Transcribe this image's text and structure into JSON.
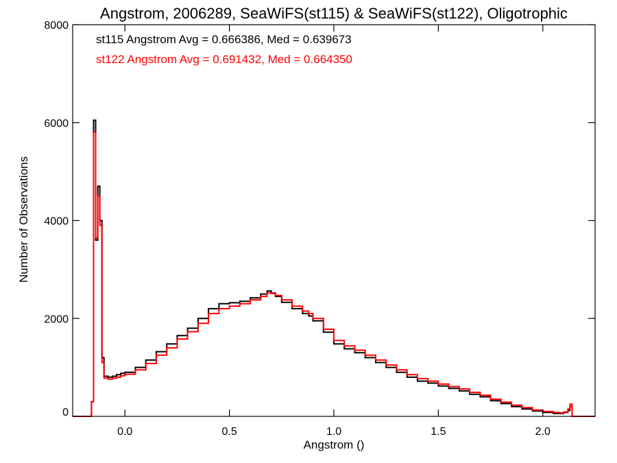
{
  "chart_data": {
    "type": "line",
    "title": "Angstrom, 2006289, SeaWiFS(st115) & SeaWiFS(st122), Oligotrophic",
    "xlabel": "Angstrom ()",
    "ylabel": "Number of Observations",
    "xlim": [
      -0.25,
      2.25
    ],
    "ylim": [
      0,
      8000
    ],
    "x_ticks": [
      0.0,
      0.5,
      1.0,
      1.5,
      2.0
    ],
    "x_tick_labels": [
      "0.0",
      "0.5",
      "1.0",
      "1.5",
      "2.0"
    ],
    "y_ticks": [
      0,
      2000,
      4000,
      6000,
      8000
    ],
    "y_tick_labels": [
      "0",
      "2000",
      "4000",
      "6000",
      "8000"
    ],
    "grid": false,
    "step": true,
    "annotations": [
      {
        "text": "st115 Angstrom Avg = 0.666386, Med = 0.639673",
        "color": "#000000"
      },
      {
        "text": "st122 Angstrom Avg = 0.691432, Med = 0.664350",
        "color": "#ff0000"
      }
    ],
    "series": [
      {
        "color": "#000000",
        "x": [
          -0.25,
          -0.16,
          -0.15,
          -0.14,
          -0.13,
          -0.12,
          -0.11,
          -0.1,
          -0.08,
          -0.06,
          -0.04,
          -0.02,
          0.0,
          0.05,
          0.1,
          0.15,
          0.2,
          0.25,
          0.3,
          0.35,
          0.4,
          0.45,
          0.5,
          0.55,
          0.6,
          0.65,
          0.68,
          0.7,
          0.72,
          0.75,
          0.8,
          0.85,
          0.88,
          0.9,
          0.95,
          1.0,
          1.05,
          1.1,
          1.15,
          1.2,
          1.25,
          1.3,
          1.35,
          1.4,
          1.45,
          1.5,
          1.55,
          1.6,
          1.65,
          1.7,
          1.75,
          1.8,
          1.85,
          1.9,
          1.95,
          2.0,
          2.05,
          2.08,
          2.1,
          2.12,
          2.13,
          2.14,
          2.25
        ],
        "values": [
          0,
          300,
          6050,
          3600,
          4700,
          4000,
          1200,
          820,
          800,
          820,
          850,
          880,
          900,
          1000,
          1150,
          1320,
          1480,
          1650,
          1800,
          2000,
          2200,
          2300,
          2320,
          2350,
          2420,
          2500,
          2560,
          2520,
          2450,
          2330,
          2200,
          2100,
          2050,
          1950,
          1720,
          1480,
          1380,
          1300,
          1200,
          1100,
          1000,
          900,
          800,
          720,
          680,
          620,
          570,
          520,
          450,
          400,
          320,
          260,
          200,
          150,
          110,
          80,
          60,
          60,
          80,
          120,
          200,
          0,
          0
        ]
      },
      {
        "color": "#ff0000",
        "x": [
          -0.25,
          -0.16,
          -0.15,
          -0.14,
          -0.13,
          -0.12,
          -0.11,
          -0.1,
          -0.08,
          -0.06,
          -0.04,
          -0.02,
          0.0,
          0.05,
          0.1,
          0.15,
          0.2,
          0.25,
          0.3,
          0.35,
          0.4,
          0.45,
          0.5,
          0.55,
          0.6,
          0.65,
          0.68,
          0.7,
          0.72,
          0.75,
          0.8,
          0.85,
          0.88,
          0.9,
          0.95,
          1.0,
          1.05,
          1.1,
          1.15,
          1.2,
          1.25,
          1.3,
          1.35,
          1.4,
          1.45,
          1.5,
          1.55,
          1.6,
          1.65,
          1.7,
          1.75,
          1.8,
          1.85,
          1.9,
          1.95,
          2.0,
          2.05,
          2.08,
          2.1,
          2.12,
          2.13,
          2.14,
          2.25
        ],
        "values": [
          0,
          300,
          5800,
          3650,
          4500,
          3900,
          1100,
          780,
          760,
          780,
          800,
          830,
          860,
          950,
          1080,
          1250,
          1400,
          1580,
          1730,
          1900,
          2100,
          2200,
          2250,
          2300,
          2380,
          2450,
          2520,
          2510,
          2470,
          2380,
          2250,
          2150,
          2100,
          2000,
          1780,
          1550,
          1440,
          1350,
          1250,
          1150,
          1050,
          950,
          850,
          770,
          720,
          660,
          610,
          560,
          490,
          430,
          350,
          290,
          230,
          180,
          130,
          100,
          80,
          70,
          90,
          150,
          250,
          0,
          0
        ]
      }
    ]
  }
}
